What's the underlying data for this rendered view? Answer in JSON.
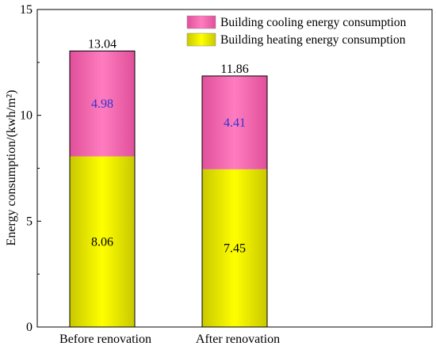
{
  "chart_data": {
    "type": "bar",
    "stacked": true,
    "categories": [
      "Before renovation",
      "After renovation"
    ],
    "series": [
      {
        "name": "Building heating energy consumption",
        "values": [
          8.06,
          7.45
        ],
        "color": "#ffff00",
        "label_color": "#000000"
      },
      {
        "name": "Building cooling energy consumption",
        "values": [
          4.98,
          4.41
        ],
        "color": "#ff66b3",
        "label_color": "#3333cc"
      }
    ],
    "totals": [
      "13.04",
      "11.86"
    ],
    "value_labels": [
      [
        "8.06",
        "4.98"
      ],
      [
        "7.45",
        "4.41"
      ]
    ],
    "ylabel": "Energy consumption/(kwh/m²)",
    "ylim": [
      0,
      15
    ],
    "yticks": [
      0,
      5,
      10,
      15
    ],
    "ytick_labels": [
      "0",
      "5",
      "10",
      "15"
    ],
    "grid": false,
    "legend_position": "top-right",
    "legend_order": [
      "Building cooling energy consumption",
      "Building heating energy consumption"
    ]
  }
}
